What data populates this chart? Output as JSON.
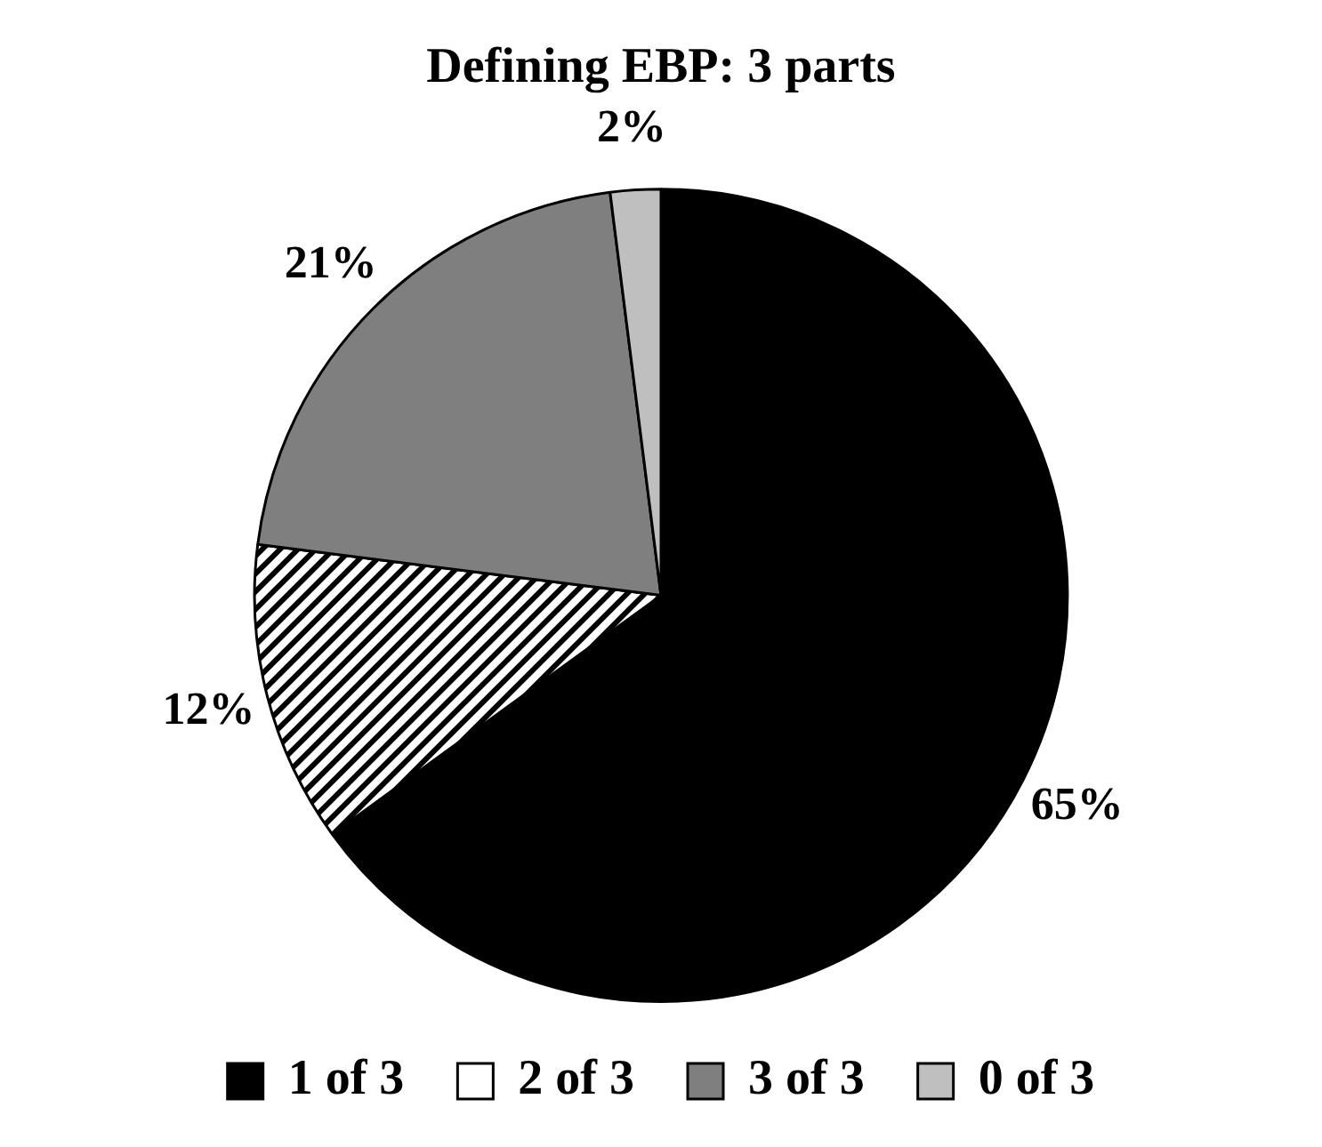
{
  "chart_data": {
    "type": "pie",
    "title": "Defining EBP: 3 parts",
    "categories": [
      "1 of 3",
      "2 of 3",
      "3 of 3",
      "0 of 3"
    ],
    "values": [
      65,
      12,
      21,
      2
    ],
    "colors": [
      "#000000",
      "#ffffff",
      "#7f7f7f",
      "#bfbfbf"
    ],
    "value_labels": [
      "65%",
      "12%",
      "21%",
      "2%"
    ],
    "legend": "bottom"
  }
}
